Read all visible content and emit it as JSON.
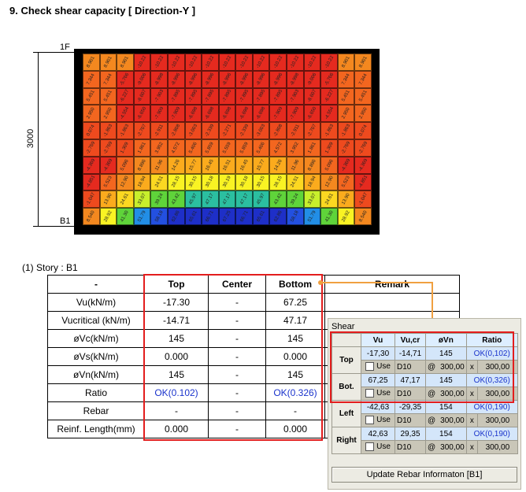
{
  "section_title": "9. Check shear capacity [ Direction-Y ]",
  "drawing": {
    "dimension_value": "3000",
    "label_top": "1F",
    "label_bottom": "B1",
    "grid": [
      [
        "8.901",
        "8.901",
        "8.901",
        "-10.22",
        "-10.22",
        "-10.22",
        "-10.22",
        "-10.22",
        "-10.22",
        "-10.22",
        "-10.22",
        "-10.22",
        "-10.22",
        "-10.22",
        "-10.22",
        "8.901",
        "8.901"
      ],
      [
        "7.344",
        "7.344",
        "-5.766",
        "-9.006",
        "-8.998",
        "-8.996",
        "-8.996",
        "-8.996",
        "-8.996",
        "-8.996",
        "-8.996",
        "-8.996",
        "-8.998",
        "-9.006",
        "-5.766",
        "7.344",
        "7.344"
      ],
      [
        "5.451",
        "5.451",
        "-6.227",
        "-8.607",
        "-7.903",
        "-7.895",
        "-7.895",
        "-7.895",
        "-7.895",
        "-7.895",
        "-7.895",
        "-7.895",
        "-7.903",
        "-8.607",
        "-6.227",
        "5.451",
        "5.451"
      ],
      [
        "2.950",
        "2.950",
        "-4.554",
        "-6.650",
        "-7.909",
        "-7.909",
        "-6.698",
        "-6.698",
        "-6.698",
        "-6.698",
        "-6.698",
        "-7.909",
        "-7.909",
        "-6.650",
        "-4.554",
        "2.950",
        "2.950"
      ],
      [
        "0.074",
        "-1.863",
        "-1.863",
        "-2.707",
        "-2.911",
        "-2.808",
        "-3.003",
        "-2.339",
        "-2.271",
        "-2.339",
        "-3.003",
        "-2.808",
        "-2.911",
        "-2.707",
        "-1.863",
        "-1.863",
        "0.074"
      ],
      [
        "-2.769",
        "-2.769",
        "1.309",
        "1.861",
        "3.952",
        "4.572",
        "5.406",
        "5.859",
        "5.559",
        "5.859",
        "5.406",
        "4.572",
        "3.952",
        "1.861",
        "1.309",
        "-2.769",
        "-2.769"
      ],
      [
        "-4.369",
        "-4.369",
        "5.096",
        "8.896",
        "11.96",
        "14.26",
        "15.77",
        "16.45",
        "16.51",
        "16.45",
        "15.77",
        "14.26",
        "11.96",
        "8.896",
        "5.096",
        "-4.369",
        "-4.369"
      ],
      [
        "-4.851",
        "5.523",
        "12.90",
        "18.94",
        "24.51",
        "28.15",
        "30.15",
        "30.18",
        "30.19",
        "30.18",
        "30.15",
        "28.15",
        "24.51",
        "18.94",
        "12.90",
        "5.523",
        "-4.851"
      ],
      [
        "-1.047",
        "13.90",
        "24.61",
        "33.07",
        "39.24",
        "43.42",
        "45.97",
        "47.17",
        "47.17",
        "47.17",
        "45.97",
        "43.42",
        "39.24",
        "33.07",
        "24.61",
        "13.90",
        "-1.047"
      ],
      [
        "8.540",
        "28.92",
        "41.30",
        "51.79",
        "58.18",
        "62.86",
        "65.61",
        "66.71",
        "67.25",
        "66.71",
        "65.61",
        "62.86",
        "58.18",
        "51.79",
        "41.30",
        "28.92",
        "8.540"
      ]
    ]
  },
  "story_label": "(1)  Story : B1",
  "table": {
    "headers": [
      "-",
      "Top",
      "Center",
      "Bottom",
      "Remark"
    ],
    "rows": [
      {
        "label": "Vu(kN/m)",
        "top": "-17.30",
        "center": "-",
        "bottom": "67.25"
      },
      {
        "label": "Vucritical (kN/m)",
        "top": "-14.71",
        "center": "-",
        "bottom": "47.17"
      },
      {
        "label": "øVc(kN/m)",
        "top": "145",
        "center": "-",
        "bottom": "145"
      },
      {
        "label": "øVs(kN/m)",
        "top": "0.000",
        "center": "-",
        "bottom": "0.000"
      },
      {
        "label": "øVn(kN/m)",
        "top": "145",
        "center": "-",
        "bottom": "145"
      },
      {
        "label": "Ratio",
        "top": "OK(0.102)",
        "center": "-",
        "bottom": "OK(0.326)"
      },
      {
        "label": "Rebar",
        "top": "-",
        "center": "-",
        "bottom": "-"
      },
      {
        "label": "Reinf. Length(mm)",
        "top": "0.000",
        "center": "-",
        "bottom": "0.000"
      }
    ]
  },
  "dialog": {
    "title": "Shear",
    "columns": [
      "Vu",
      "Vu,cr",
      "øVn",
      "Ratio"
    ],
    "use_label": "Use",
    "at_symbol": "@",
    "x_symbol": "x",
    "groups": [
      {
        "label": "Top",
        "vu": "-17,30",
        "vucr": "-14,71",
        "phivn": "145",
        "ratio": "OK(0,102)",
        "rebar": "D10",
        "spacing": "300,00",
        "length": "300,00"
      },
      {
        "label": "Bot.",
        "vu": "67,25",
        "vucr": "47,17",
        "phivn": "145",
        "ratio": "OK(0,326)",
        "rebar": "D10",
        "spacing": "300,00",
        "length": "300,00"
      },
      {
        "label": "Left",
        "vu": "-42,63",
        "vucr": "-29,35",
        "phivn": "154",
        "ratio": "OK(0,190)",
        "rebar": "D10",
        "spacing": "300,00",
        "length": "300,00"
      },
      {
        "label": "Right",
        "vu": "42,63",
        "vucr": "29,35",
        "phivn": "154",
        "ratio": "OK(0,190)",
        "rebar": "D10",
        "spacing": "300,00",
        "length": "300,00"
      }
    ],
    "update_button": "Update Rebar Informaton [B1]"
  },
  "colors": {
    "accent_red": "#e31d1d",
    "link_orange": "#f0a040",
    "ok_blue": "#1a33cc"
  }
}
